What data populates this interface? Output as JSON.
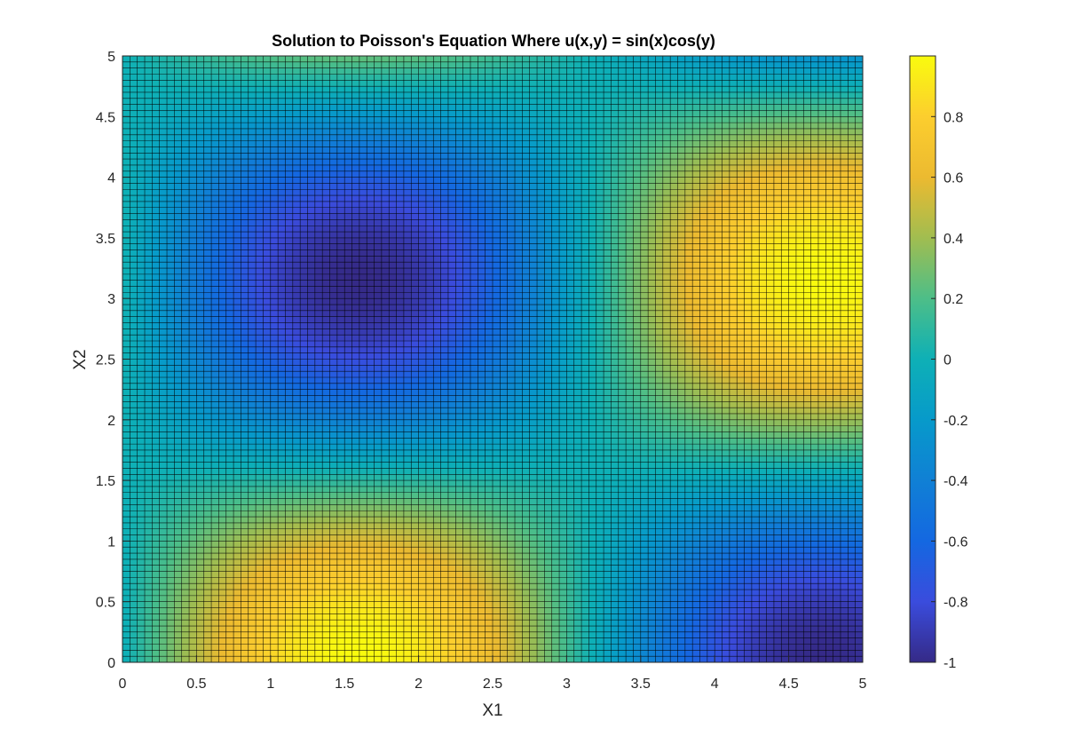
{
  "chart_data": {
    "type": "heatmap",
    "title": "Solution to Poisson's Equation Where u(x,y) = sin(x)cos(y)",
    "xlabel": "X1",
    "ylabel": "X2",
    "function": "sin(x)cos(y)",
    "xlim": [
      0,
      5
    ],
    "ylim": [
      0,
      5
    ],
    "grid_points": 101,
    "step": 0.05,
    "x_ticks": [
      "0",
      "0.5",
      "1",
      "1.5",
      "2",
      "2.5",
      "3",
      "3.5",
      "4",
      "4.5",
      "5"
    ],
    "y_ticks": [
      "0",
      "0.5",
      "1",
      "1.5",
      "2",
      "2.5",
      "3",
      "3.5",
      "4",
      "4.5",
      "5"
    ],
    "colorbar": {
      "colormap": "parula",
      "clim": [
        -1,
        1
      ],
      "ticks": [
        "-1",
        "-0.8",
        "-0.6",
        "-0.4",
        "-0.2",
        "0",
        "0.2",
        "0.4",
        "0.6",
        "0.8"
      ],
      "tick_values": [
        -1,
        -0.8,
        -0.6,
        -0.4,
        -0.2,
        0,
        0.2,
        0.4,
        0.6,
        0.8
      ]
    },
    "cell_edge_color": "#000000"
  }
}
